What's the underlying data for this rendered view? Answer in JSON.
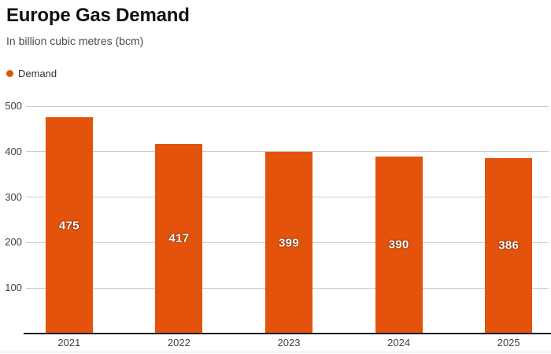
{
  "header": {
    "title": "Europe Gas Demand",
    "subtitle": "In billion cubic metres (bcm)"
  },
  "legend": {
    "items": [
      {
        "label": "Demand",
        "color": "#e4530b"
      }
    ]
  },
  "chart_data": {
    "type": "bar",
    "categories": [
      "2021",
      "2022",
      "2023",
      "2024",
      "2025"
    ],
    "series": [
      {
        "name": "Demand",
        "values": [
          475,
          417,
          399,
          390,
          386
        ],
        "color": "#e4530b"
      }
    ],
    "title": "Europe Gas Demand",
    "xlabel": "",
    "ylabel": "In billion cubic metres (bcm)",
    "ylim": [
      0,
      500
    ],
    "yticks": [
      100,
      200,
      300,
      400,
      500
    ],
    "grid": true,
    "legend_position": "top-left",
    "value_labels": true
  },
  "colors": {
    "bar": "#e4530b",
    "grid_line": "#cccccc",
    "axis_line": "#1a1a1a",
    "tick_text": "#404040",
    "title_text": "#111111",
    "subtitle_text": "#4a4a4a",
    "value_label_text": "#ffffff"
  }
}
